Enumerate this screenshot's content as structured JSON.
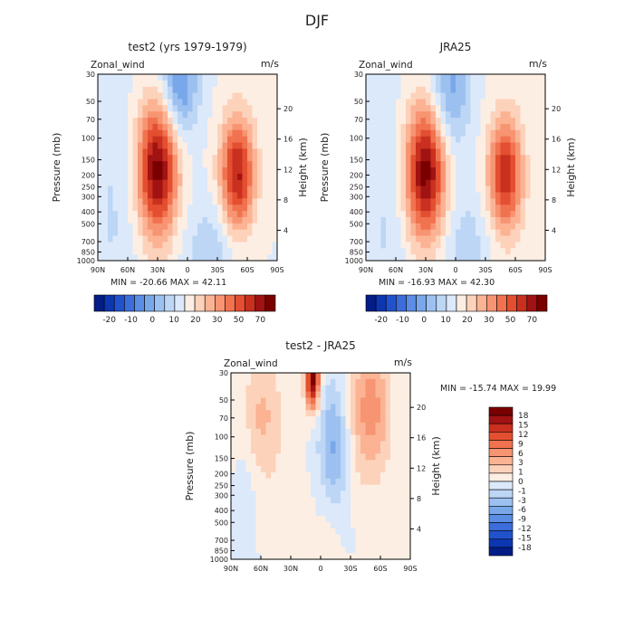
{
  "title": "DJF",
  "colors": {
    "positive": [
      "#fdeee3",
      "#fdd2bb",
      "#fbb394",
      "#f79472",
      "#f1724f",
      "#e34f30",
      "#c9301f",
      "#a11212",
      "#7a0000"
    ],
    "negative": [
      "#dbe9fa",
      "#bdd6f5",
      "#9cc1f0",
      "#79a8ea",
      "#5a8de3",
      "#3b6edb",
      "#2152cc",
      "#0d36b1",
      "#031c86"
    ]
  },
  "chart_data": [
    {
      "id": "p1",
      "type": "heatmap",
      "title": "test2 (yrs 1979-1979)",
      "left_label": "Zonal_wind",
      "right_label": "m/s",
      "xlabel": "",
      "ylabel": "Pressure (mb)",
      "ylabel_right": "Height (km)",
      "x_ticks": [
        "90N",
        "60N",
        "30N",
        "0",
        "30S",
        "60S",
        "90S"
      ],
      "x_values": [
        90,
        60,
        30,
        0,
        -30,
        -60,
        -90
      ],
      "y_ticks": [
        "30",
        "50",
        "70",
        "100",
        "150",
        "200",
        "250",
        "300",
        "400",
        "500",
        "700",
        "850",
        "1000"
      ],
      "y_values": [
        30,
        50,
        70,
        100,
        150,
        200,
        250,
        300,
        400,
        500,
        700,
        850,
        1000
      ],
      "height_ticks": [
        "4",
        "8",
        "12",
        "16",
        "20"
      ],
      "height_values": [
        4,
        8,
        12,
        16,
        20
      ],
      "ylim": [
        1000,
        30
      ],
      "stats": "MIN = -20.66   MAX = 42.11",
      "min": -20.66,
      "max": 42.11,
      "colorbar_labels": [
        "-20",
        "-10",
        "0",
        "10",
        "20",
        "30",
        "50",
        "70"
      ],
      "colorbar_levels": [
        -25,
        -20,
        -15,
        -10,
        -5,
        0,
        5,
        10,
        15,
        20,
        25,
        30,
        40,
        50,
        60,
        70
      ],
      "features": [
        {
          "lat": 30,
          "p": 180,
          "val": 40,
          "spread_lat": 14,
          "spread_logp": 0.38
        },
        {
          "lat": -50,
          "p": 200,
          "val": 34,
          "spread_lat": 12,
          "spread_logp": 0.33
        },
        {
          "lat": 8,
          "p": 35,
          "val": -20,
          "spread_lat": 13,
          "spread_logp": 0.32
        },
        {
          "lat": -25,
          "p": 800,
          "val": -8,
          "spread_lat": 20,
          "spread_logp": 0.3
        },
        {
          "lat": 75,
          "p": 400,
          "val": -5,
          "spread_lat": 18,
          "spread_logp": 0.8
        }
      ]
    },
    {
      "id": "p2",
      "type": "heatmap",
      "title": "JRA25",
      "left_label": "Zonal_wind",
      "right_label": "m/s",
      "xlabel": "",
      "ylabel": "Pressure (mb)",
      "ylabel_right": "Height (km)",
      "x_ticks": [
        "90N",
        "60N",
        "30N",
        "0",
        "30S",
        "60S",
        "90S"
      ],
      "x_values": [
        90,
        60,
        30,
        0,
        -30,
        -60,
        -90
      ],
      "y_ticks": [
        "30",
        "50",
        "70",
        "100",
        "150",
        "200",
        "250",
        "300",
        "400",
        "500",
        "700",
        "850",
        "1000"
      ],
      "y_values": [
        30,
        50,
        70,
        100,
        150,
        200,
        250,
        300,
        400,
        500,
        700,
        850,
        1000
      ],
      "height_ticks": [
        "4",
        "8",
        "12",
        "16",
        "20"
      ],
      "height_values": [
        4,
        8,
        12,
        16,
        20
      ],
      "ylim": [
        1000,
        30
      ],
      "stats": "MIN = -16.93   MAX = 42.30",
      "min": -16.93,
      "max": 42.3,
      "colorbar_labels": [
        "-20",
        "-10",
        "0",
        "10",
        "20",
        "30",
        "50",
        "70"
      ],
      "colorbar_levels": [
        -25,
        -20,
        -15,
        -10,
        -5,
        0,
        5,
        10,
        15,
        20,
        25,
        30,
        40,
        50,
        60,
        70
      ],
      "features": [
        {
          "lat": 30,
          "p": 190,
          "val": 40,
          "spread_lat": 14,
          "spread_logp": 0.38
        },
        {
          "lat": -50,
          "p": 200,
          "val": 32,
          "spread_lat": 12,
          "spread_logp": 0.33
        },
        {
          "lat": 5,
          "p": 40,
          "val": -16,
          "spread_lat": 14,
          "spread_logp": 0.35
        },
        {
          "lat": -10,
          "p": 700,
          "val": -7,
          "spread_lat": 18,
          "spread_logp": 0.3
        },
        {
          "lat": 70,
          "p": 500,
          "val": -5,
          "spread_lat": 16,
          "spread_logp": 0.8
        }
      ]
    },
    {
      "id": "p3",
      "type": "heatmap",
      "title": "test2 - JRA25",
      "left_label": "Zonal_wind",
      "right_label": "m/s",
      "xlabel": "",
      "ylabel": "Pressure (mb)",
      "ylabel_right": "Height (km)",
      "x_ticks": [
        "90N",
        "60N",
        "30N",
        "0",
        "30S",
        "60S",
        "90S"
      ],
      "x_values": [
        90,
        60,
        30,
        0,
        -30,
        -60,
        -90
      ],
      "y_ticks": [
        "30",
        "50",
        "70",
        "100",
        "150",
        "200",
        "250",
        "300",
        "400",
        "500",
        "700",
        "850",
        "1000"
      ],
      "y_values": [
        30,
        50,
        70,
        100,
        150,
        200,
        250,
        300,
        400,
        500,
        700,
        850,
        1000
      ],
      "height_ticks": [
        "4",
        "8",
        "12",
        "16",
        "20"
      ],
      "height_values": [
        4,
        8,
        12,
        16,
        20
      ],
      "ylim": [
        1000,
        30
      ],
      "stats": "MIN = -15.74   MAX =  19.99",
      "min": -15.74,
      "max": 19.99,
      "colorbar_labels": [
        "18",
        "15",
        "12",
        "9",
        "6",
        "3",
        "1",
        "0",
        "-1",
        "-3",
        "-6",
        "-9",
        "-12",
        "-15",
        "-18"
      ],
      "colorbar_levels": [
        18,
        15,
        12,
        9,
        6,
        3,
        1,
        0,
        -1,
        -3,
        -6,
        -9,
        -12,
        -15,
        -18
      ],
      "features": [
        {
          "lat": 8,
          "p": 32,
          "val": 20,
          "spread_lat": 5,
          "spread_logp": 0.18
        },
        {
          "lat": -50,
          "p": 60,
          "val": 8,
          "spread_lat": 14,
          "spread_logp": 0.4
        },
        {
          "lat": 60,
          "p": 70,
          "val": 5,
          "spread_lat": 16,
          "spread_logp": 0.35
        },
        {
          "lat": -10,
          "p": 400,
          "val": 3,
          "spread_lat": 9,
          "spread_logp": 0.35
        },
        {
          "lat": -12,
          "p": 140,
          "val": -8,
          "spread_lat": 10,
          "spread_logp": 0.4
        },
        {
          "lat": 75,
          "p": 300,
          "val": -2,
          "spread_lat": 8,
          "spread_logp": 0.6
        },
        {
          "lat": 35,
          "p": 600,
          "val": 2,
          "spread_lat": 16,
          "spread_logp": 0.35
        }
      ]
    }
  ]
}
